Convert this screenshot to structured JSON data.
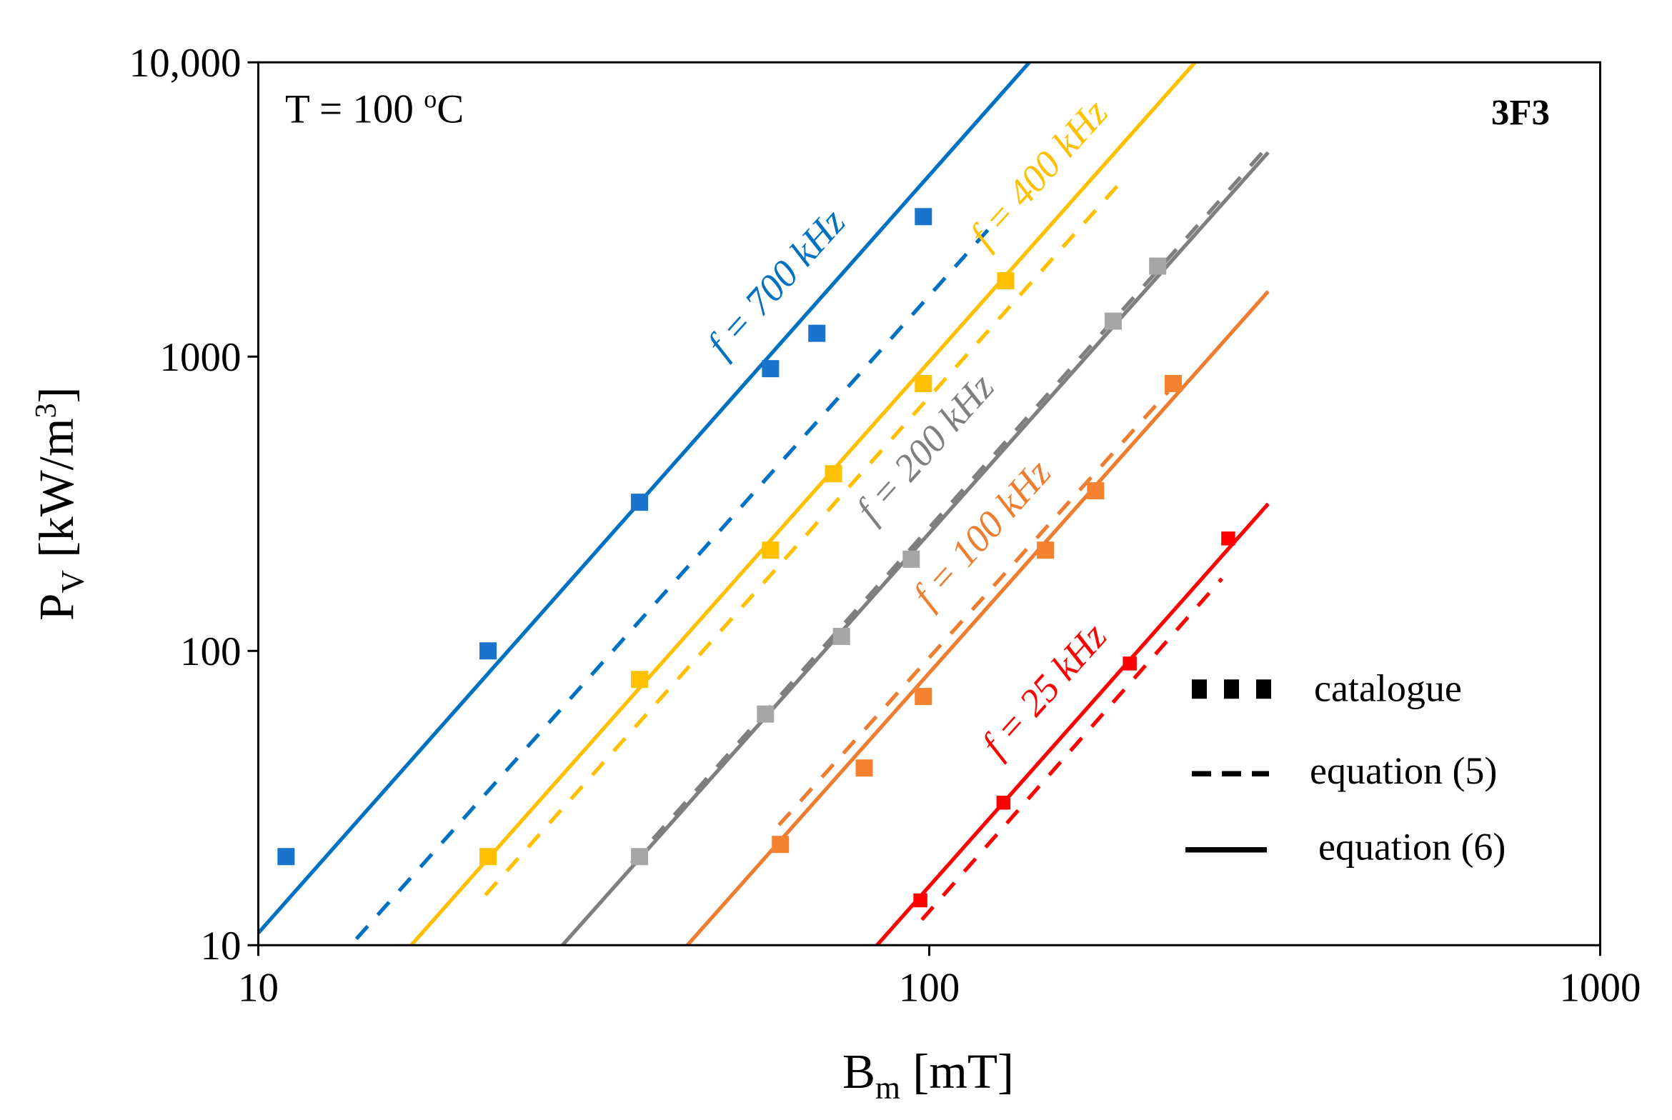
{
  "chart_data": {
    "type": "line",
    "title": "",
    "xlabel": "B",
    "xlabel_sub": "m",
    "xlabel_unit": " [mT]",
    "ylabel": "P",
    "ylabel_sub": "V",
    "ylabel_unit": " [kW/m",
    "ylabel_sup": "3",
    "ylabel_end": "]",
    "xscale": "log",
    "yscale": "log",
    "xlim": [
      10,
      1000
    ],
    "ylim": [
      10,
      10000
    ],
    "xticks": [
      {
        "v": 10,
        "label": "10"
      },
      {
        "v": 100,
        "label": "100"
      },
      {
        "v": 1000,
        "label": "1000"
      }
    ],
    "yticks": [
      {
        "v": 10,
        "label": "10"
      },
      {
        "v": 100,
        "label": "100"
      },
      {
        "v": 1000,
        "label": "1000"
      },
      {
        "v": 10000,
        "label": "10,000"
      }
    ],
    "grid": false,
    "annotations": {
      "temperature": "T = 100 ",
      "temperature_sup": "o",
      "temperature_unit": "C",
      "material": "3F3"
    },
    "legend": {
      "placement": "bottom-right",
      "items": [
        {
          "label": "catalogue",
          "style": "markers"
        },
        {
          "label": "equation (5)",
          "style": "dashed"
        },
        {
          "label": "equation (6)",
          "style": "solid"
        }
      ]
    },
    "series": [
      {
        "name": "f = 700 kHz",
        "color": "#0070C0",
        "marker_color": "#1874CD",
        "catalogue": [
          [
            11,
            20
          ],
          [
            22,
            100
          ],
          [
            37,
            320
          ],
          [
            58,
            910
          ],
          [
            68,
            1200
          ],
          [
            98,
            2990
          ]
        ],
        "eq5": [
          [
            14,
            10.5
          ],
          [
            125,
            2850
          ]
        ],
        "eq6": [
          [
            10,
            11
          ],
          [
            141,
            10000
          ]
        ]
      },
      {
        "name": "f = 400 kHz",
        "color": "#FFC000",
        "marker_color": "#FFC000",
        "catalogue": [
          [
            22,
            20
          ],
          [
            37,
            80
          ],
          [
            58,
            220
          ],
          [
            72,
            400
          ],
          [
            98,
            810
          ],
          [
            130,
            1810
          ]
        ],
        "eq5": [
          [
            21.8,
            14.8
          ],
          [
            196,
            4080
          ]
        ],
        "eq6": [
          [
            16.9,
            10
          ],
          [
            249,
            10000
          ]
        ]
      },
      {
        "name": "f = 200 kHz",
        "color": "#7F7F7F",
        "marker_color": "#A6A6A6",
        "catalogue": [
          [
            37,
            20
          ],
          [
            57,
            61
          ],
          [
            74,
            112
          ],
          [
            94,
            205
          ],
          [
            188,
            1320
          ],
          [
            219,
            2030
          ]
        ],
        "eq5": [
          [
            36,
            19
          ],
          [
            320,
            5200
          ]
        ],
        "eq6": [
          [
            28.4,
            10
          ],
          [
            320,
            4940
          ]
        ]
      },
      {
        "name": "f = 100 kHz",
        "color": "#ED7D31",
        "marker_color": "#F58231",
        "catalogue": [
          [
            60,
            22
          ],
          [
            80,
            40
          ],
          [
            98,
            70
          ],
          [
            149,
            220
          ],
          [
            177,
            350
          ],
          [
            231,
            810
          ]
        ],
        "eq5": [
          [
            59.7,
            25.6
          ],
          [
            227,
            760
          ]
        ],
        "eq6": [
          [
            43.6,
            10
          ],
          [
            320,
            1665
          ]
        ]
      },
      {
        "name": "f = 25 kHz",
        "color": "#FF0000",
        "marker_color": "#FF0000",
        "catalogue": [
          [
            97,
            14.2
          ],
          [
            129,
            30.5
          ],
          [
            199,
            90.6
          ],
          [
            279,
            241
          ]
        ],
        "eq5": [
          [
            97.5,
            12.2
          ],
          [
            273,
            176
          ]
        ],
        "eq6": [
          [
            83.6,
            10
          ],
          [
            320,
            316
          ]
        ]
      }
    ]
  }
}
